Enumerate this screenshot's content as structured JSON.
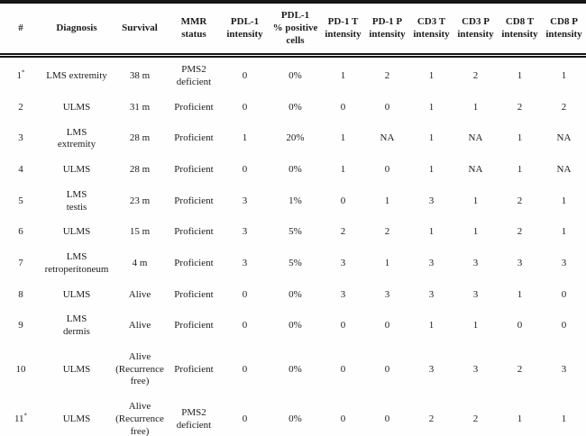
{
  "table": {
    "columns": [
      {
        "key": "id",
        "label": "#"
      },
      {
        "key": "diagnosis",
        "label": "Diagnosis"
      },
      {
        "key": "survival",
        "label": "Survival"
      },
      {
        "key": "mmr",
        "label": "MMR\nstatus"
      },
      {
        "key": "pdl1_int",
        "label": "PDL-1\nintensity"
      },
      {
        "key": "pdl1_pct",
        "label": "PDL-1\n% positive\ncells"
      },
      {
        "key": "pd1_t",
        "label": "PD-1 T\nintensity"
      },
      {
        "key": "pd1_p",
        "label": "PD-1 P\nintensity"
      },
      {
        "key": "cd3_t",
        "label": "CD3 T\nintensity"
      },
      {
        "key": "cd3_p",
        "label": "CD3 P\nintensity"
      },
      {
        "key": "cd8_t",
        "label": "CD8 T\nintensity"
      },
      {
        "key": "cd8_p",
        "label": "CD8 P\nintensity"
      }
    ],
    "rows": [
      {
        "id": "1",
        "id_mark": "*",
        "diagnosis": "LMS extremity",
        "survival": "38 m",
        "mmr": "PMS2\ndeficient",
        "pdl1_int": "0",
        "pdl1_pct": "0%",
        "pd1_t": "1",
        "pd1_p": "2",
        "cd3_t": "1",
        "cd3_p": "2",
        "cd8_t": "1",
        "cd8_p": "1"
      },
      {
        "id": "2",
        "id_mark": "",
        "diagnosis": "ULMS",
        "survival": "31 m",
        "mmr": "Proficient",
        "pdl1_int": "0",
        "pdl1_pct": "0%",
        "pd1_t": "0",
        "pd1_p": "0",
        "cd3_t": "1",
        "cd3_p": "1",
        "cd8_t": "2",
        "cd8_p": "2"
      },
      {
        "id": "3",
        "id_mark": "",
        "diagnosis": "LMS\nextremity",
        "survival": "28 m",
        "mmr": "Proficient",
        "pdl1_int": "1",
        "pdl1_pct": "20%",
        "pd1_t": "1",
        "pd1_p": "NA",
        "cd3_t": "1",
        "cd3_p": "NA",
        "cd8_t": "1",
        "cd8_p": "NA"
      },
      {
        "id": "4",
        "id_mark": "",
        "diagnosis": "ULMS",
        "survival": "28 m",
        "mmr": "Proficient",
        "pdl1_int": "0",
        "pdl1_pct": "0%",
        "pd1_t": "1",
        "pd1_p": "0",
        "cd3_t": "1",
        "cd3_p": "NA",
        "cd8_t": "1",
        "cd8_p": "NA"
      },
      {
        "id": "5",
        "id_mark": "",
        "diagnosis": "LMS\ntestis",
        "survival": "23 m",
        "mmr": "Proficient",
        "pdl1_int": "3",
        "pdl1_pct": "1%",
        "pd1_t": "0",
        "pd1_p": "1",
        "cd3_t": "3",
        "cd3_p": "1",
        "cd8_t": "2",
        "cd8_p": "1"
      },
      {
        "id": "6",
        "id_mark": "",
        "diagnosis": "ULMS",
        "survival": "15 m",
        "mmr": "Proficient",
        "pdl1_int": "3",
        "pdl1_pct": "5%",
        "pd1_t": "2",
        "pd1_p": "2",
        "cd3_t": "1",
        "cd3_p": "1",
        "cd8_t": "2",
        "cd8_p": "1"
      },
      {
        "id": "7",
        "id_mark": "",
        "diagnosis": "LMS\nretroperitoneum",
        "survival": "4 m",
        "mmr": "Proficient",
        "pdl1_int": "3",
        "pdl1_pct": "5%",
        "pd1_t": "3",
        "pd1_p": "1",
        "cd3_t": "3",
        "cd3_p": "3",
        "cd8_t": "3",
        "cd8_p": "3"
      },
      {
        "id": "8",
        "id_mark": "",
        "diagnosis": "ULMS",
        "survival": "Alive",
        "mmr": "Proficient",
        "pdl1_int": "0",
        "pdl1_pct": "0%",
        "pd1_t": "3",
        "pd1_p": "3",
        "cd3_t": "3",
        "cd3_p": "3",
        "cd8_t": "1",
        "cd8_p": "0"
      },
      {
        "id": "9",
        "id_mark": "",
        "diagnosis": "LMS\ndermis",
        "survival": "Alive",
        "mmr": "Proficient",
        "pdl1_int": "0",
        "pdl1_pct": "0%",
        "pd1_t": "0",
        "pd1_p": "0",
        "cd3_t": "1",
        "cd3_p": "1",
        "cd8_t": "0",
        "cd8_p": "0"
      },
      {
        "id": "10",
        "id_mark": "",
        "diagnosis": "ULMS",
        "survival": "Alive\n(Recurrence\nfree)",
        "mmr": "Proficient",
        "pdl1_int": "0",
        "pdl1_pct": "0%",
        "pd1_t": "0",
        "pd1_p": "0",
        "cd3_t": "3",
        "cd3_p": "3",
        "cd8_t": "2",
        "cd8_p": "3"
      },
      {
        "id": "11",
        "id_mark": "*",
        "diagnosis": "ULMS",
        "survival": "Alive\n(Recurrence\nfree)",
        "mmr": "PMS2\ndeficient",
        "pdl1_int": "0",
        "pdl1_pct": "0%",
        "pd1_t": "0",
        "pd1_p": "0",
        "cd3_t": "2",
        "cd3_p": "2",
        "cd8_t": "1",
        "cd8_p": "1"
      }
    ]
  },
  "colors": {
    "border": "#161616",
    "text": "#1c1c1c",
    "background": "#fefefe"
  }
}
